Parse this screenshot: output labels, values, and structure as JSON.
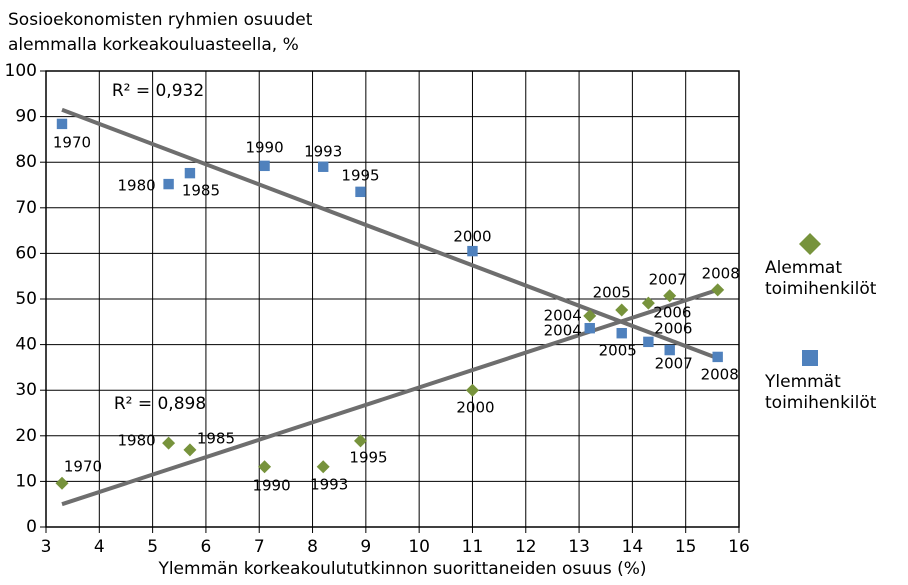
{
  "chart_data": {
    "type": "scatter",
    "ylabel": [
      "Sosioekonomisten ryhmien osuudet",
      "alemmalla korkeakouluasteella, %"
    ],
    "xlabel": "Ylemmän korkeakoulututkinnon suorittaneiden osuus (%)",
    "xlim": [
      3,
      16
    ],
    "xticks": [
      3,
      4,
      5,
      6,
      7,
      8,
      9,
      10,
      11,
      12,
      13,
      14,
      15,
      16
    ],
    "ylim": [
      0,
      100
    ],
    "yticks": [
      0,
      10,
      20,
      30,
      40,
      50,
      60,
      70,
      80,
      90,
      100
    ],
    "grid": true,
    "legend": "right",
    "series": [
      {
        "name": "Alemmat toimihenkilöt",
        "color": "#77933c",
        "marker": "diamond",
        "x": [
          3.3,
          5.3,
          5.7,
          7.1,
          8.2,
          8.9,
          11,
          13.2,
          13.8,
          14.3,
          14.7,
          15.6
        ],
        "values": [
          9.6,
          18.4,
          16.9,
          13.2,
          13.2,
          18.9,
          30,
          46.3,
          47.6,
          49.1,
          50.7,
          52
        ],
        "labels": [
          "1970",
          "1980",
          "1985",
          "1990",
          "1993",
          "1995",
          "2000",
          "2004",
          "2005",
          "2006",
          "2007",
          "2008"
        ],
        "trend": {
          "x": [
            3.3,
            15.6
          ],
          "values": [
            5,
            52
          ]
        },
        "r2": "R² = 0,898"
      },
      {
        "name": "Ylemmät toimihenkilöt",
        "color": "#4f81bd",
        "marker": "square",
        "x": [
          3.3,
          5.3,
          5.7,
          7.1,
          8.2,
          8.9,
          11,
          13.2,
          13.8,
          14.3,
          14.7,
          15.6
        ],
        "values": [
          88.4,
          75.2,
          77.6,
          79.2,
          79,
          73.5,
          60.5,
          43.6,
          42.5,
          40.6,
          38.8,
          37.3
        ],
        "labels": [
          "1970",
          "1980",
          "1985",
          "1990",
          "1993",
          "1995",
          "2000",
          "2004",
          "2005",
          "2006",
          "2007",
          "2008"
        ],
        "trend": {
          "x": [
            3.3,
            15.6
          ],
          "values": [
            91.5,
            37
          ]
        },
        "r2": "R² = 0,932"
      }
    ]
  }
}
